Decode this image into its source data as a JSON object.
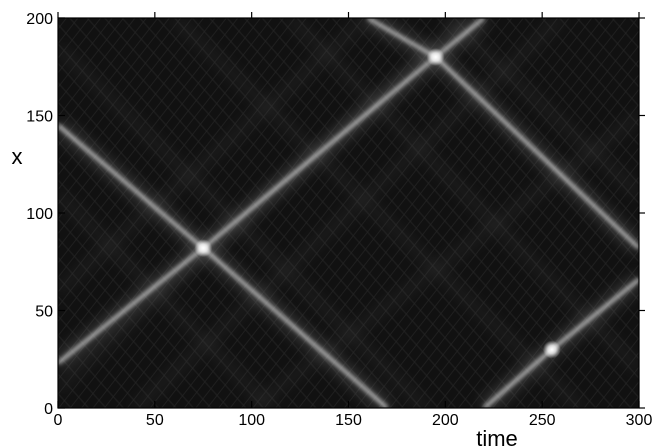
{
  "chart_data": {
    "type": "heatmap",
    "title": "",
    "xlabel": "time",
    "ylabel": "x",
    "xlim": [
      0,
      300
    ],
    "ylim": [
      0,
      200
    ],
    "x_ticks": [
      0,
      50,
      100,
      150,
      200,
      250,
      300
    ],
    "y_ticks": [
      0,
      50,
      100,
      150,
      200
    ],
    "x_tick_labels": [
      "0",
      "50",
      "100",
      "150",
      "200",
      "250",
      "300"
    ],
    "y_tick_labels": [
      "0",
      "50",
      "100",
      "150",
      "200"
    ],
    "colormap": "grayscale",
    "background_color": "#111111",
    "grid": false,
    "traces": [
      {
        "direction": "rising",
        "points": [
          [
            0,
            23
          ],
          [
            75,
            82
          ],
          [
            195,
            180
          ],
          [
            220,
            200
          ]
        ]
      },
      {
        "direction": "falling",
        "points": [
          [
            0,
            145
          ],
          [
            75,
            82
          ],
          [
            170,
            0
          ]
        ]
      },
      {
        "direction": "falling",
        "points": [
          [
            160,
            200
          ],
          [
            195,
            180
          ],
          [
            300,
            82
          ]
        ]
      },
      {
        "direction": "rising",
        "points": [
          [
            220,
            0
          ],
          [
            255,
            30
          ],
          [
            300,
            66
          ]
        ]
      }
    ],
    "bright_spots": [
      [
        75,
        82
      ],
      [
        195,
        180
      ],
      [
        255,
        30
      ]
    ]
  }
}
